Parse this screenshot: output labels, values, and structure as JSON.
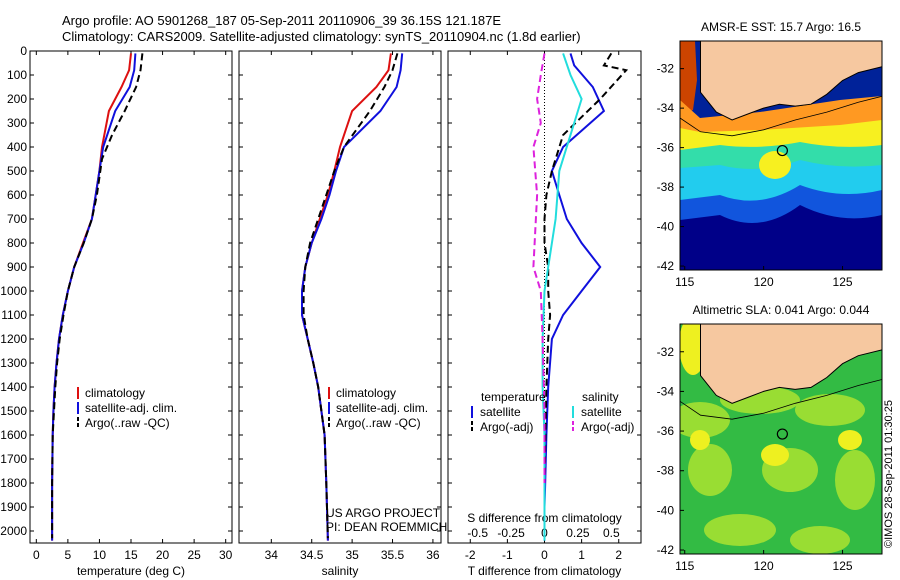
{
  "header": {
    "line1": "Argo profile: AO 5901268_187 05-Sep-2011 20110906_39 36.15S 121.187E",
    "line2": "Climatology: CARS2009. Satellite-adjusted climatology: synTS_20110904.nc (1.8d earlier)"
  },
  "credit": {
    "project": "US ARGO PROJECT",
    "pi": "PI: DEAN ROEMMICH",
    "imos": "©IMOS 28-Sep-2011 01:30:25"
  },
  "colors": {
    "climatology": "#dd1010",
    "satellite": "#1010dd",
    "argo": "#000000",
    "salinity_sat": "#22dddd",
    "salinity_argo": "#dd22dd"
  },
  "chart_data": [
    {
      "id": "temperature",
      "type": "line",
      "xlabel": "temperature (deg C)",
      "ylabel": "",
      "xlim": [
        -1,
        31
      ],
      "ylim": [
        2050,
        0
      ],
      "xticks": [
        0,
        5,
        10,
        15,
        20,
        25,
        30
      ],
      "yticks": [
        0,
        100,
        200,
        300,
        400,
        500,
        600,
        700,
        800,
        900,
        1000,
        1100,
        1200,
        1300,
        1400,
        1500,
        1600,
        1700,
        1800,
        1900,
        2000
      ],
      "legend": {
        "position": "center-left",
        "entries": [
          "climatology",
          "satellite-adj. clim.",
          "Argo(..raw -QC)"
        ]
      },
      "series": [
        {
          "name": "climatology",
          "style": "solid",
          "color": "#dd1010",
          "x": [
            15.0,
            14.7,
            13.5,
            11.5,
            10.4,
            10.0,
            9.4,
            8.8,
            7.4,
            6.0,
            5.0,
            4.2,
            3.6,
            3.2,
            2.9,
            2.7,
            2.6,
            2.5,
            2.5
          ],
          "y": [
            10,
            80,
            150,
            250,
            400,
            500,
            600,
            700,
            800,
            900,
            1000,
            1100,
            1200,
            1300,
            1400,
            1500,
            1600,
            1800,
            2040
          ]
        },
        {
          "name": "satellite-adj. clim.",
          "style": "solid",
          "color": "#1010dd",
          "x": [
            15.7,
            15.5,
            14.8,
            12.5,
            10.6,
            10.0,
            9.4,
            8.8,
            7.5,
            6.0,
            5.0,
            4.2,
            3.6,
            3.2,
            2.9,
            2.7,
            2.6,
            2.5,
            2.5
          ],
          "y": [
            10,
            80,
            150,
            250,
            400,
            500,
            600,
            700,
            800,
            900,
            1000,
            1100,
            1200,
            1300,
            1400,
            1500,
            1600,
            1800,
            2040
          ]
        },
        {
          "name": "Argo(..raw -QC)",
          "style": "dashed",
          "color": "#000000",
          "x": [
            16.8,
            16.5,
            15.8,
            14.0,
            12.0,
            10.4,
            9.6,
            8.8,
            7.5,
            6.0,
            5.0,
            4.3,
            3.7,
            3.3,
            3.0,
            2.8,
            2.6,
            2.5,
            2.5
          ],
          "y": [
            10,
            80,
            150,
            250,
            350,
            450,
            600,
            700,
            800,
            900,
            1000,
            1100,
            1200,
            1300,
            1400,
            1500,
            1600,
            1800,
            2030
          ]
        }
      ]
    },
    {
      "id": "salinity",
      "type": "line",
      "xlabel": "salinity",
      "ylabel": "",
      "xlim": [
        33.6,
        36.1
      ],
      "ylim": [
        2050,
        0
      ],
      "xticks": [
        34,
        34.5,
        35,
        35.5,
        36
      ],
      "legend": {
        "position": "center-left",
        "entries": [
          "climatology",
          "satellite-adj. clim.",
          "Argo(..raw -QC)"
        ]
      },
      "series": [
        {
          "name": "climatology",
          "style": "solid",
          "color": "#dd1010",
          "x": [
            35.48,
            35.45,
            35.3,
            35.0,
            34.85,
            34.78,
            34.7,
            34.6,
            34.5,
            34.42,
            34.38,
            34.38,
            34.45,
            34.52,
            34.58,
            34.62,
            34.66,
            34.68,
            34.7
          ],
          "y": [
            10,
            80,
            150,
            250,
            400,
            500,
            600,
            700,
            800,
            900,
            1000,
            1100,
            1200,
            1300,
            1400,
            1500,
            1600,
            1800,
            2040
          ]
        },
        {
          "name": "satellite-adj. clim.",
          "style": "solid",
          "color": "#1010dd",
          "x": [
            35.62,
            35.6,
            35.55,
            35.35,
            34.9,
            34.8,
            34.72,
            34.62,
            34.5,
            34.42,
            34.38,
            34.38,
            34.45,
            34.52,
            34.58,
            34.62,
            34.66,
            34.68,
            34.7
          ],
          "y": [
            10,
            80,
            150,
            250,
            400,
            500,
            600,
            700,
            800,
            900,
            1000,
            1100,
            1200,
            1300,
            1400,
            1500,
            1600,
            1800,
            2040
          ]
        },
        {
          "name": "Argo(..raw -QC)",
          "style": "dashed",
          "color": "#000000",
          "x": [
            35.56,
            35.5,
            35.4,
            35.22,
            34.9,
            34.78,
            34.68,
            34.58,
            34.48,
            34.42,
            34.4,
            34.4,
            34.45,
            34.52,
            34.58,
            34.62,
            34.66,
            34.68,
            34.7
          ],
          "y": [
            10,
            80,
            150,
            250,
            400,
            500,
            600,
            700,
            800,
            900,
            1000,
            1100,
            1200,
            1300,
            1400,
            1500,
            1600,
            1800,
            2030
          ]
        }
      ]
    },
    {
      "id": "difference",
      "type": "line",
      "xlabel": "T difference from climatology",
      "xlabel_top": "S difference from climatology",
      "xlim": [
        -2.6,
        2.6
      ],
      "ylim": [
        2050,
        0
      ],
      "xticks": [
        -2,
        -1,
        0,
        1,
        2
      ],
      "sticks": [
        {
          "pos": -1.8,
          "label": "-0.5"
        },
        {
          "pos": -0.9,
          "label": "-0.25"
        },
        {
          "pos": 0,
          "label": "0"
        },
        {
          "pos": 0.9,
          "label": "0.25"
        },
        {
          "pos": 1.8,
          "label": "0.5"
        }
      ],
      "legend": {
        "position": "center",
        "temperature_title": "temperature",
        "salinity_title": "salinity",
        "entries": [
          "satellite",
          "Argo(-adj)",
          "satellite",
          "Argo(-adj)"
        ]
      },
      "series": [
        {
          "name": "satellite",
          "group": "temperature",
          "style": "solid",
          "color": "#1010dd",
          "x": [
            0.7,
            0.8,
            1.3,
            1.6,
            0.5,
            0.2,
            0.4,
            0.6,
            1.0,
            1.5,
            1.0,
            0.5,
            0.2,
            0.1,
            0.05,
            0.02,
            0.0,
            0.0
          ],
          "y": [
            10,
            60,
            150,
            250,
            400,
            500,
            600,
            700,
            800,
            900,
            1000,
            1100,
            1200,
            1400,
            1600,
            1800,
            1900,
            2040
          ]
        },
        {
          "name": "Argo(-adj)",
          "group": "temperature",
          "style": "dashed",
          "color": "#000000",
          "x": [
            1.8,
            1.6,
            2.2,
            1.5,
            0.5,
            0.2,
            0.05,
            0.0,
            0.0,
            0.1,
            0.1,
            0.15,
            0.1,
            0.05,
            0.0,
            0.0
          ],
          "y": [
            10,
            60,
            80,
            200,
            350,
            500,
            600,
            700,
            800,
            900,
            1000,
            1100,
            1200,
            1400,
            1800,
            2030
          ]
        },
        {
          "name": "satellite",
          "group": "salinity",
          "style": "solid",
          "color": "#22dddd",
          "x": [
            0.5,
            0.7,
            1.0,
            0.8,
            0.4,
            0.3,
            0.2,
            0.1,
            0.0,
            -0.05,
            -0.05,
            0.0,
            0.0,
            0.0
          ],
          "y": [
            10,
            100,
            200,
            300,
            500,
            700,
            800,
            900,
            1000,
            1200,
            1400,
            1600,
            1800,
            2040
          ]
        },
        {
          "name": "Argo(-adj)",
          "group": "salinity",
          "style": "dashed",
          "color": "#dd22dd",
          "x": [
            0.0,
            -0.1,
            -0.2,
            -0.1,
            -0.3,
            -0.2,
            -0.3,
            -0.1,
            -0.05,
            0.0,
            0.0
          ],
          "y": [
            10,
            100,
            200,
            300,
            400,
            600,
            900,
            1000,
            1200,
            1500,
            1800
          ]
        }
      ]
    }
  ],
  "maps": [
    {
      "id": "sst",
      "title": "AMSR-E SST: 15.7 Argo: 16.5",
      "lon_ticks": [
        115,
        120,
        125
      ],
      "lat_ticks": [
        -32,
        -34,
        -36,
        -38,
        -40,
        -42
      ],
      "colors": {
        "land": "#f6c8a0",
        "warm": "#cc4400",
        "mid": "#ff9922",
        "yellow": "#f7f020",
        "green": "#33ddaa",
        "cyan": "#22ccee",
        "blue": "#1155dd",
        "navy": "#002299",
        "deep": "#000088"
      }
    },
    {
      "id": "sla",
      "title": "Altimetric SLA: 0.041 Argo: 0.044",
      "lon_ticks": [
        115,
        120,
        125
      ],
      "lat_ticks": [
        -32,
        -34,
        -36,
        -38,
        -40,
        -42
      ],
      "colors": {
        "land": "#f6c8a0",
        "yellow": "#eef020",
        "lightgreen": "#99dd33",
        "green": "#33bb44"
      }
    }
  ]
}
